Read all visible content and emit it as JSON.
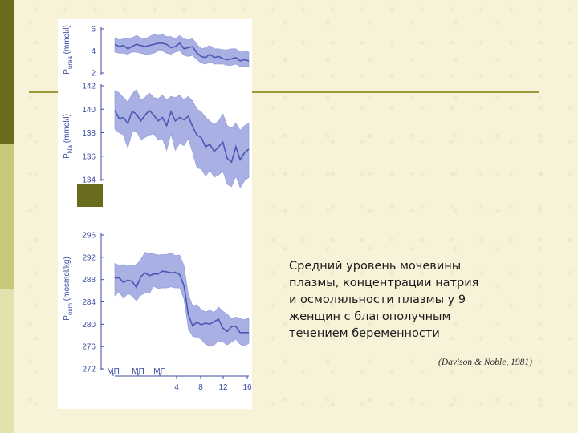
{
  "caption": "Средний уровень мочевины\nплазмы, концентрации натрия\nи осмоляльности плазмы у 9\nженщин с благополучным\nтечением беременности",
  "citation": "(Davison & Noble, 1981)",
  "colors": {
    "line": "#4a58b4",
    "band": "#a9b0e3",
    "axis": "#3a4aa0"
  },
  "chart_data": [
    {
      "type": "line",
      "ylabel": "P_urea (mmol/l)",
      "ylabel_main": "P",
      "ylabel_sub": "urea",
      "ylabel_unit": "(mmol/l)",
      "yticks": [
        "6",
        "4",
        "2"
      ],
      "ylim": [
        2,
        6
      ],
      "band": "mean ± range",
      "series": [
        {
          "x": [
            0,
            1,
            2,
            3,
            4,
            5,
            6,
            7,
            8,
            9,
            10,
            11,
            12,
            13,
            14,
            15,
            16,
            17,
            18,
            19,
            20,
            21,
            22,
            23,
            24,
            25,
            26,
            27,
            28,
            29,
            30,
            31
          ],
          "mean": [
            4.6,
            4.4,
            4.5,
            4.2,
            4.4,
            4.6,
            4.5,
            4.4,
            4.5,
            4.6,
            4.7,
            4.7,
            4.6,
            4.3,
            4.4,
            4.7,
            4.2,
            4.3,
            4.4,
            3.8,
            3.5,
            3.4,
            3.7,
            3.4,
            3.5,
            3.3,
            3.2,
            3.3,
            3.4,
            3.1,
            3.2,
            3.1
          ],
          "upper": [
            5.2,
            5.0,
            5.1,
            5.1,
            5.2,
            5.4,
            5.2,
            5.1,
            5.3,
            5.5,
            5.4,
            5.5,
            5.3,
            5.3,
            5.1,
            5.4,
            5.1,
            5.0,
            5.1,
            4.6,
            4.2,
            4.3,
            4.5,
            4.2,
            4.2,
            4.1,
            4.1,
            4.2,
            4.2,
            3.9,
            4.0,
            3.9
          ],
          "lower": [
            3.9,
            3.8,
            3.8,
            3.7,
            3.9,
            3.9,
            3.8,
            3.7,
            3.7,
            3.8,
            4.0,
            4.0,
            3.8,
            3.7,
            3.9,
            4.0,
            3.6,
            3.5,
            3.6,
            3.2,
            2.9,
            2.8,
            3.0,
            2.8,
            2.8,
            2.8,
            2.7,
            2.7,
            2.8,
            2.6,
            2.6,
            2.6
          ]
        }
      ]
    },
    {
      "type": "line",
      "ylabel": "P_Na (mmol/l)",
      "ylabel_main": "P",
      "ylabel_sub": "Na",
      "ylabel_unit": "(mmol/l)",
      "yticks": [
        "142",
        "140",
        "138",
        "136",
        "134"
      ],
      "ylim": [
        134,
        142
      ],
      "band": "mean ± range",
      "series": [
        {
          "x": [
            0,
            1,
            2,
            3,
            4,
            5,
            6,
            7,
            8,
            9,
            10,
            11,
            12,
            13,
            14,
            15,
            16,
            17,
            18,
            19,
            20,
            21,
            22,
            23,
            24,
            25,
            26,
            27,
            28,
            29,
            30,
            31
          ],
          "mean": [
            139.9,
            139.2,
            139.3,
            138.8,
            139.8,
            139.6,
            139.0,
            139.5,
            139.9,
            139.5,
            139.0,
            139.3,
            138.6,
            139.8,
            139.0,
            139.3,
            139.1,
            139.4,
            138.5,
            137.8,
            137.6,
            136.8,
            137.0,
            136.4,
            136.8,
            137.2,
            135.8,
            135.5,
            136.8,
            135.7,
            136.3,
            136.6
          ],
          "upper": [
            141.6,
            141.4,
            141.0,
            140.6,
            141.3,
            141.7,
            140.8,
            141.0,
            141.4,
            141.0,
            140.9,
            141.2,
            140.8,
            141.1,
            141.0,
            141.2,
            140.8,
            141.1,
            140.7,
            140.0,
            139.8,
            139.3,
            139.0,
            138.7,
            139.0,
            139.6,
            138.6,
            138.4,
            138.8,
            138.2,
            138.6,
            138.8
          ],
          "lower": [
            138.3,
            138.0,
            137.8,
            136.7,
            138.0,
            138.2,
            137.4,
            137.6,
            137.8,
            137.9,
            137.4,
            137.5,
            136.5,
            137.9,
            136.5,
            137.1,
            136.9,
            137.5,
            136.3,
            135.0,
            134.9,
            134.3,
            134.8,
            134.2,
            134.4,
            134.7,
            133.6,
            133.4,
            134.3,
            133.3,
            133.9,
            134.2
          ]
        }
      ]
    },
    {
      "type": "line",
      "ylabel": "P_osm (mosmol/kg)",
      "ylabel_main": "P",
      "ylabel_sub": "osm",
      "ylabel_unit": "(mosmol/kg)",
      "yticks": [
        "296",
        "292",
        "288",
        "284",
        "280",
        "276",
        "272"
      ],
      "ylim": [
        272,
        296
      ],
      "xticks": [
        "МП",
        "МП",
        "МП",
        "4",
        "8",
        "12",
        "16"
      ],
      "band": "mean ± range",
      "series": [
        {
          "x": [
            0,
            1,
            2,
            3,
            4,
            5,
            6,
            7,
            8,
            9,
            10,
            11,
            12,
            13,
            14,
            15,
            16,
            17,
            18,
            19,
            20,
            21,
            22,
            23,
            24,
            25,
            26,
            27,
            28,
            29,
            30,
            31
          ],
          "mean": [
            288.3,
            288.3,
            287.5,
            287.9,
            287.7,
            286.6,
            288.5,
            289.2,
            288.7,
            289.0,
            289.0,
            289.5,
            289.4,
            289.2,
            289.3,
            288.9,
            286.9,
            281.7,
            279.7,
            280.4,
            279.9,
            280.2,
            280.0,
            280.5,
            280.9,
            279.3,
            278.7,
            279.6,
            279.6,
            278.5,
            278.5,
            278.5
          ],
          "upper": [
            290.9,
            290.6,
            290.7,
            290.4,
            290.6,
            290.6,
            291.6,
            292.9,
            292.7,
            292.6,
            292.4,
            292.5,
            292.5,
            292.8,
            292.3,
            292.4,
            290.5,
            285.3,
            283.3,
            283.5,
            282.6,
            282.2,
            282.5,
            282.1,
            283.1,
            282.3,
            281.8,
            281.0,
            281.3,
            281.0,
            280.8,
            281.2
          ],
          "lower": [
            285.1,
            285.8,
            284.6,
            285.5,
            285.1,
            284.2,
            285.2,
            285.6,
            285.5,
            286.8,
            286.4,
            286.5,
            286.5,
            286.7,
            286.5,
            286.5,
            284.5,
            279.2,
            277.8,
            277.7,
            277.3,
            276.4,
            276.1,
            276.3,
            277.0,
            276.8,
            276.3,
            276.8,
            277.3,
            276.4,
            276.1,
            276.6
          ]
        }
      ]
    }
  ]
}
